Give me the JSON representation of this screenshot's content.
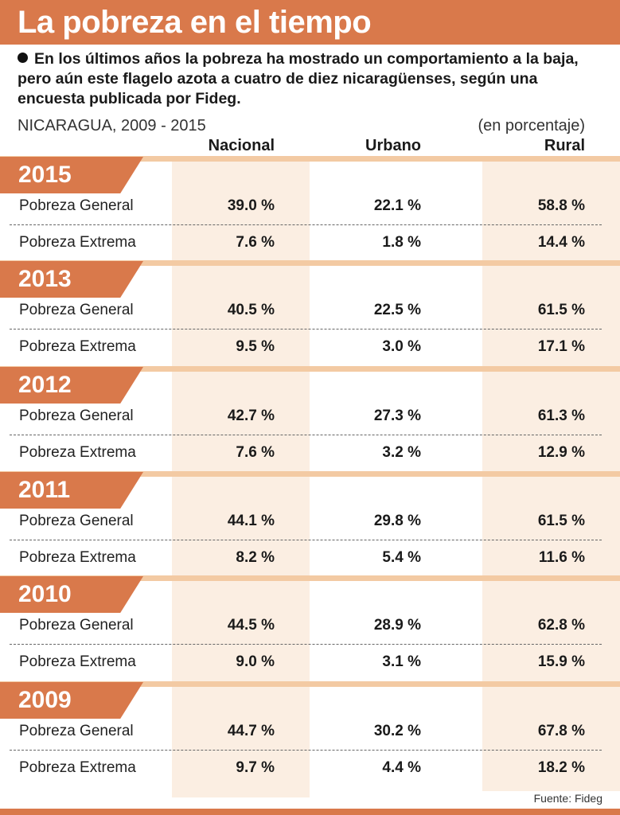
{
  "title": "La pobreza en el tiempo",
  "subtitle": "En los últimos años la pobreza ha mostrado un comportamiento a la baja, pero aún este flagelo azota a cuatro de diez nicaragüenses, según una encuesta publicada por Fideg.",
  "region_label": "NICARAGUA, 2009 - 2015",
  "unit_label": "(en porcentaje)",
  "columns": [
    "Nacional",
    "Urbano",
    "Rural"
  ],
  "source": "Fuente: Fideg",
  "colors": {
    "accent": "#d9794b",
    "band": "#f3caa3",
    "shade": "#fbeee2"
  },
  "chart_data": {
    "type": "table",
    "title": "La pobreza en el tiempo",
    "columns": [
      "Nacional",
      "Urbano",
      "Rural"
    ],
    "years": [
      {
        "year": "2015",
        "rows": [
          {
            "label": "Pobreza General",
            "values": [
              "39.0 %",
              "22.1 %",
              "58.8 %"
            ]
          },
          {
            "label": "Pobreza Extrema",
            "values": [
              "7.6 %",
              "1.8 %",
              "14.4 %"
            ]
          }
        ]
      },
      {
        "year": "2013",
        "rows": [
          {
            "label": "Pobreza General",
            "values": [
              "40.5 %",
              "22.5 %",
              "61.5 %"
            ]
          },
          {
            "label": "Pobreza Extrema",
            "values": [
              "9.5 %",
              "3.0 %",
              "17.1 %"
            ]
          }
        ]
      },
      {
        "year": "2012",
        "rows": [
          {
            "label": "Pobreza General",
            "values": [
              "42.7 %",
              "27.3 %",
              "61.3 %"
            ]
          },
          {
            "label": "Pobreza Extrema",
            "values": [
              "7.6 %",
              "3.2 %",
              "12.9 %"
            ]
          }
        ]
      },
      {
        "year": "2011",
        "rows": [
          {
            "label": "Pobreza General",
            "values": [
              "44.1 %",
              "29.8 %",
              "61.5 %"
            ]
          },
          {
            "label": "Pobreza Extrema",
            "values": [
              "8.2 %",
              "5.4 %",
              "11.6 %"
            ]
          }
        ]
      },
      {
        "year": "2010",
        "rows": [
          {
            "label": "Pobreza General",
            "values": [
              "44.5 %",
              "28.9 %",
              "62.8 %"
            ]
          },
          {
            "label": "Pobreza Extrema",
            "values": [
              "9.0 %",
              "3.1 %",
              "15.9 %"
            ]
          }
        ]
      },
      {
        "year": "2009",
        "rows": [
          {
            "label": "Pobreza General",
            "values": [
              "44.7 %",
              "30.2 %",
              "67.8 %"
            ]
          },
          {
            "label": "Pobreza Extrema",
            "values": [
              "9.7 %",
              "4.4 %",
              "18.2 %"
            ]
          }
        ]
      }
    ]
  }
}
